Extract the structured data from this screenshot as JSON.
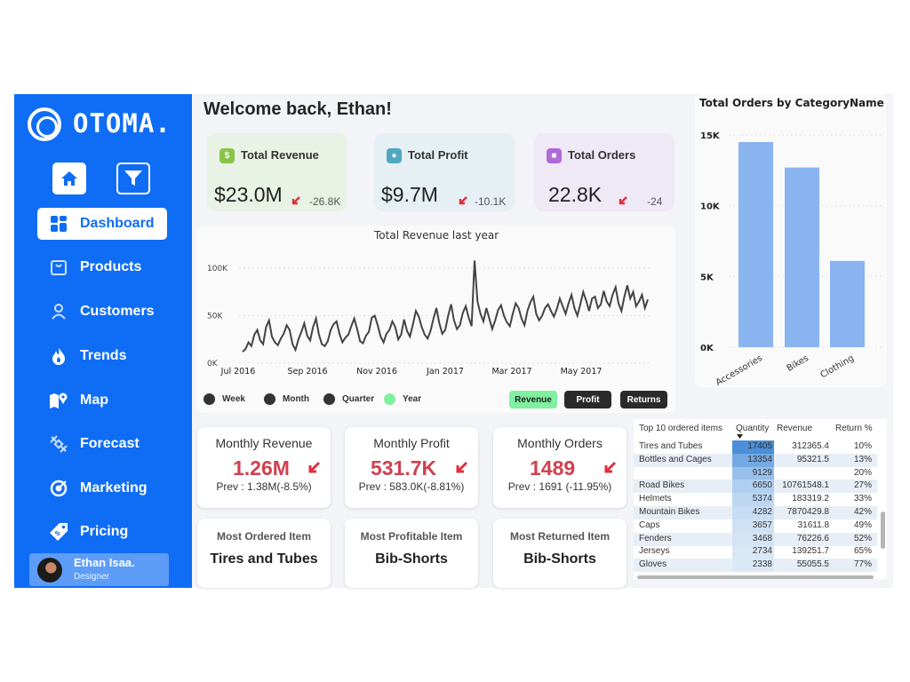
{
  "app": {
    "logo_text": "OTOMA."
  },
  "sidebar": {
    "nav": [
      {
        "label": "Dashboard",
        "icon": "grid-icon",
        "active": true
      },
      {
        "label": "Products",
        "icon": "box-icon"
      },
      {
        "label": "Customers",
        "icon": "person-icon"
      },
      {
        "label": "Trends",
        "icon": "flame-icon"
      },
      {
        "label": "Map",
        "icon": "map-pin-icon"
      },
      {
        "label": "Forecast",
        "icon": "satellite-icon"
      },
      {
        "label": "Marketing",
        "icon": "target-icon"
      },
      {
        "label": "Pricing",
        "icon": "price-tag-icon"
      }
    ],
    "user": {
      "name": "Ethan Isaa.",
      "role": "Designer"
    }
  },
  "header": {
    "welcome": "Welcome back, Ethan!"
  },
  "kpis": [
    {
      "title": "Total Revenue",
      "value": "$23.0M",
      "delta": "-26.8K",
      "color": "#8bc34a",
      "bg": "#e8f3e6"
    },
    {
      "title": "Total Profit",
      "value": "$9.7M",
      "delta": "-10.1K",
      "color": "#4fa8c0",
      "bg": "#e6eff3"
    },
    {
      "title": "Total Orders",
      "value": "22.8K",
      "delta": "-24",
      "color": "#b06ad9",
      "bg": "#efe8f5"
    }
  ],
  "line_chart": {
    "title": "Total Revenue last year",
    "y_ticks": [
      "100K",
      "50K",
      "0K"
    ],
    "x_ticks": [
      "Jul 2016",
      "Sep 2016",
      "Nov 2016",
      "Jan 2017",
      "Mar 2017",
      "May 2017"
    ],
    "legend": [
      "Week",
      "Month",
      "Quarter",
      "Year"
    ],
    "buttons": [
      "Revenue",
      "Profit",
      "Returns"
    ],
    "values": [
      12,
      15,
      22,
      18,
      30,
      35,
      24,
      20,
      38,
      45,
      28,
      22,
      19,
      26,
      31,
      40,
      35,
      20,
      14,
      25,
      33,
      42,
      29,
      24,
      38,
      47,
      30,
      20,
      18,
      23,
      35,
      41,
      44,
      31,
      22,
      27,
      30,
      39,
      47,
      36,
      23,
      21,
      29,
      33,
      48,
      50,
      40,
      28,
      22,
      31,
      35,
      44,
      38,
      25,
      30,
      46,
      34,
      28,
      41,
      55,
      49,
      38,
      30,
      26,
      34,
      47,
      58,
      42,
      31,
      35,
      50,
      62,
      45,
      36,
      40,
      53,
      60,
      48,
      39,
      108,
      65,
      52,
      44,
      58,
      47,
      36,
      45,
      56,
      61,
      50,
      43,
      39,
      52,
      63,
      58,
      47,
      40,
      55,
      64,
      70,
      52,
      45,
      50,
      58,
      62,
      55,
      49,
      57,
      68,
      60,
      52,
      63,
      72,
      58,
      50,
      62,
      75,
      66,
      55,
      68,
      70,
      58,
      62,
      76,
      65,
      60,
      72,
      80,
      63,
      55,
      70,
      82,
      68,
      75,
      60,
      65,
      72,
      58,
      67
    ]
  },
  "bar_chart": {
    "title": "Total Orders by CategoryName",
    "y_ticks": [
      "15K",
      "10K",
      "5K",
      "0K"
    ],
    "categories": [
      "Accessories",
      "Bikes",
      "Clothing"
    ],
    "values": [
      14500,
      12700,
      6100
    ],
    "ylim": [
      0,
      15000
    ],
    "color": "#8ab4f0"
  },
  "monthly": [
    {
      "title": "Monthly Revenue",
      "value": "1.26M",
      "prev": "Prev : 1.38M(-8.5%)"
    },
    {
      "title": "Monthly Profit",
      "value": "531.7K",
      "prev": "Prev : 583.0K(-8.81%)"
    },
    {
      "title": "Monthly Orders",
      "value": "1489",
      "prev": "Prev : 1691 (-11.95%)"
    }
  ],
  "items": [
    {
      "title": "Most Ordered Item",
      "value": "Tires and Tubes"
    },
    {
      "title": "Most Profitable Item",
      "value": "Bib-Shorts"
    },
    {
      "title": "Most Returned Item",
      "value": "Bib-Shorts"
    }
  ],
  "table": {
    "headers": [
      "Top 10 ordered items",
      "Quantity",
      "Revenue",
      "Return %"
    ],
    "rows": [
      [
        "Tires and Tubes",
        "17405",
        "312365.4",
        "10%"
      ],
      [
        "Bottles and Cages",
        "13354",
        "95321.5",
        "13%"
      ],
      [
        "",
        "9129",
        "",
        "20%"
      ],
      [
        "Road Bikes",
        "6650",
        "10761548.1",
        "27%"
      ],
      [
        "Helmets",
        "5374",
        "183319.2",
        "33%"
      ],
      [
        "Mountain Bikes",
        "4282",
        "7870429.8",
        "42%"
      ],
      [
        "Caps",
        "3657",
        "31611.8",
        "49%"
      ],
      [
        "Fenders",
        "3468",
        "76226.6",
        "52%"
      ],
      [
        "Jerseys",
        "2734",
        "139251.7",
        "65%"
      ],
      [
        "Gloves",
        "2338",
        "55055.5",
        "77%"
      ]
    ]
  }
}
